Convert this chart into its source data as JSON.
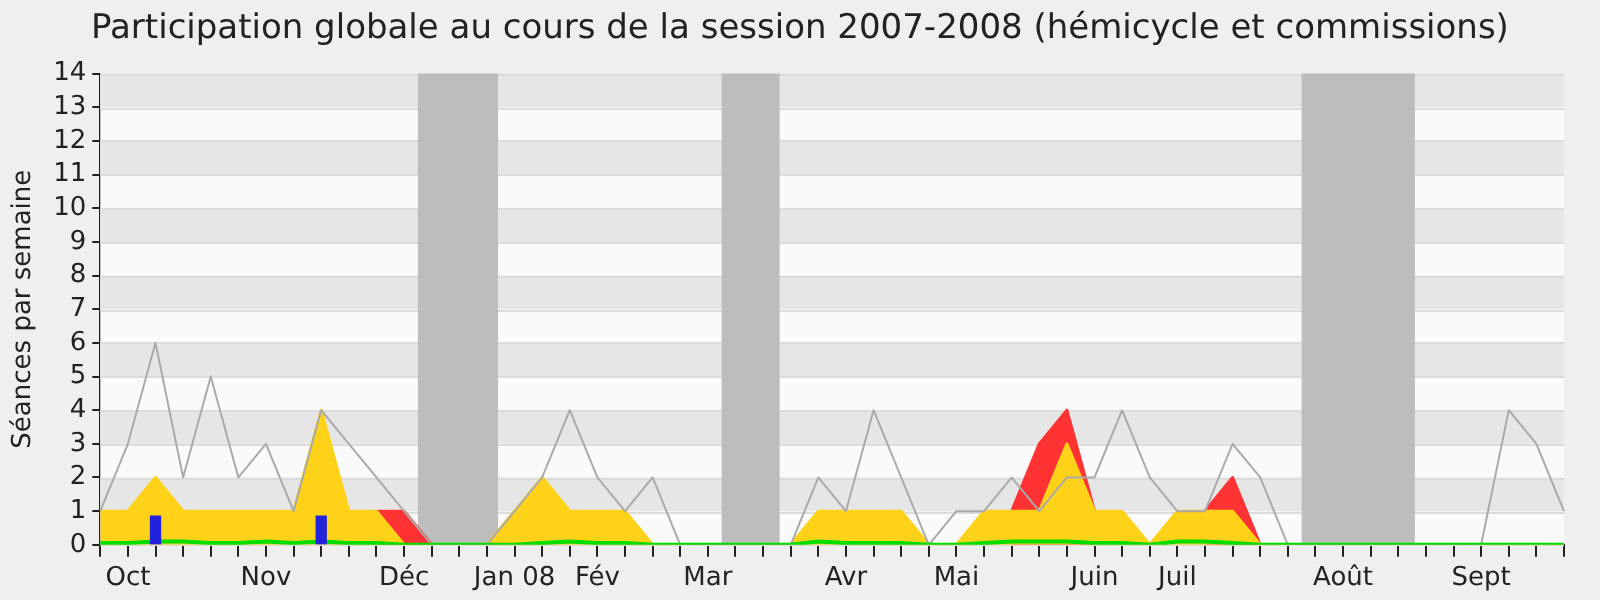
{
  "chart_data": {
    "type": "area",
    "title": "Participation globale au cours de la session 2007-2008 (hémicycle et commissions)",
    "ylabel": "Séances par semaine",
    "categories": [
      null,
      "Oct",
      null,
      null,
      null,
      null,
      "Nov",
      null,
      null,
      null,
      null,
      "Déc",
      null,
      null,
      null,
      "Jan 08",
      null,
      null,
      "Fév",
      null,
      null,
      null,
      "Mar",
      null,
      null,
      null,
      null,
      "Avr",
      null,
      null,
      null,
      "Mai",
      null,
      null,
      null,
      null,
      "Juin",
      null,
      null,
      "Juil",
      null,
      null,
      null,
      null,
      null,
      "Août",
      null,
      null,
      null,
      null,
      "Sept",
      null,
      null,
      null
    ],
    "stacked": true,
    "series": [
      {
        "color": "#ffd21a",
        "values": [
          1,
          1,
          2,
          1,
          1,
          1,
          1,
          1,
          4,
          1,
          1,
          0,
          0,
          0,
          0,
          1,
          2,
          1,
          1,
          1,
          0,
          0,
          0,
          0,
          0,
          0,
          1,
          1,
          1,
          1,
          0,
          0,
          1,
          1,
          1,
          3,
          1,
          1,
          0,
          1,
          1,
          1,
          0,
          0,
          0,
          0,
          0,
          0,
          0,
          0,
          0,
          0,
          0,
          0
        ]
      },
      {
        "color": "#ff3333",
        "values": [
          null,
          null,
          null,
          null,
          null,
          null,
          null,
          null,
          null,
          null,
          0,
          1,
          0,
          null,
          null,
          null,
          null,
          null,
          null,
          null,
          null,
          null,
          null,
          null,
          null,
          null,
          null,
          null,
          null,
          null,
          null,
          null,
          null,
          0,
          2,
          1,
          0,
          null,
          null,
          null,
          0,
          1,
          0,
          null,
          null,
          null,
          null,
          null,
          null,
          null,
          null,
          null,
          null,
          null
        ]
      },
      {
        "type": "line",
        "color": "#00dd00",
        "values": [
          0.05,
          0.05,
          0.1,
          0.1,
          0.05,
          0.05,
          0.1,
          0.05,
          0.1,
          0.05,
          0.05,
          0,
          0,
          0,
          0,
          0,
          0.05,
          0.1,
          0.05,
          0.05,
          0,
          0,
          0,
          0,
          0,
          0,
          0.1,
          0.05,
          0.05,
          0.05,
          0,
          0,
          0.05,
          0.1,
          0.1,
          0.1,
          0.05,
          0.05,
          0,
          0.1,
          0.1,
          0.05,
          0,
          0,
          0,
          0,
          0,
          0,
          0,
          0,
          0,
          0,
          0,
          0
        ]
      },
      {
        "type": "bar",
        "color": "#2222dd",
        "values": [
          null,
          null,
          0.85,
          null,
          null,
          null,
          null,
          null,
          0.85,
          null,
          null,
          null,
          null,
          null,
          null,
          null,
          null,
          null,
          null,
          null,
          null,
          null,
          null,
          null,
          null,
          null,
          null,
          null,
          null,
          null,
          null,
          null,
          null,
          null,
          null,
          null,
          null,
          null,
          null,
          null,
          null,
          null,
          null,
          null,
          null,
          null,
          null,
          null,
          null,
          null,
          null,
          null,
          null,
          null
        ]
      },
      {
        "type": "line",
        "color": "#aaaaaa",
        "values": [
          1,
          3,
          6,
          2,
          5,
          2,
          3,
          1,
          4,
          3,
          2,
          1,
          0,
          0,
          0,
          1,
          2,
          4,
          2,
          1,
          2,
          0,
          0,
          0,
          0,
          0,
          2,
          1,
          4,
          2,
          0,
          1,
          1,
          2,
          1,
          2,
          2,
          4,
          2,
          1,
          1,
          3,
          2,
          0,
          0,
          0,
          0,
          0,
          0,
          0,
          0,
          4,
          3,
          1
        ]
      }
    ],
    "ylim": [
      0,
      14
    ],
    "yticks": [
      0,
      1,
      2,
      3,
      4,
      5,
      6,
      7,
      8,
      9,
      10,
      11,
      12,
      13,
      14
    ],
    "grid": "y",
    "legend": false,
    "marker": "none"
  }
}
